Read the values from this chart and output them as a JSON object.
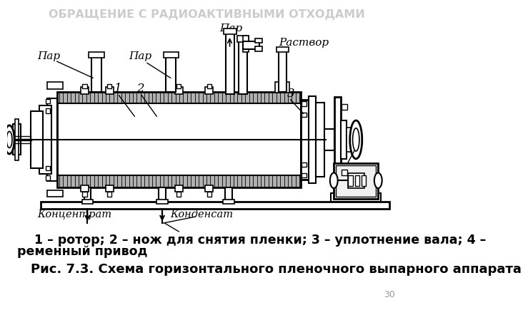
{
  "title": "ОБРАЩЕНИЕ С РАДИОАКТИВНЫМИ ОТХОДАМИ",
  "title_color": "#cccccc",
  "title_fontsize": 11.5,
  "description_line1": "    1 – ротор; 2 – нож для снятия пленки; 3 – уплотнение вала; 4 –",
  "description_line2": "ременный привод",
  "caption": "Рис. 7.3. Схема горизонтального пленочного выпарного аппарата",
  "page_number": "30",
  "bg_color": "#ffffff",
  "text_color": "#000000",
  "desc_fontsize": 12.5,
  "caption_fontsize": 13
}
